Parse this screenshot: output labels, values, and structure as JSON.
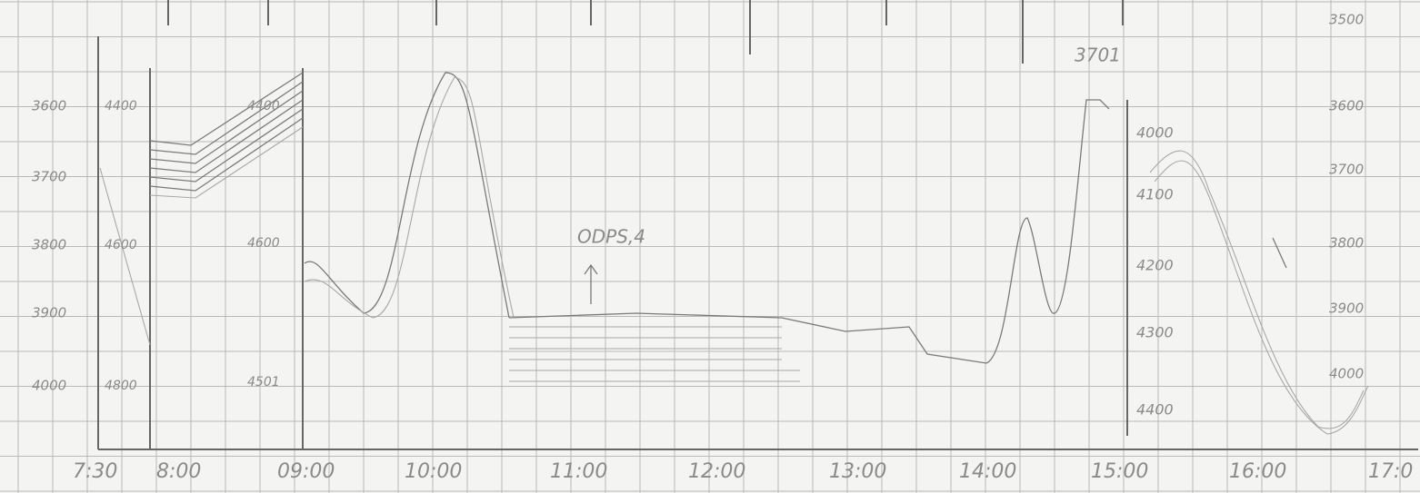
{
  "x_labels": [
    "7:30",
    "8:00",
    "09:00",
    "10:00",
    "11:00",
    "12:00",
    "13:00",
    "14:00",
    "15:00",
    "16:00",
    "17:0"
  ],
  "axis_1": [
    "3600",
    "3700",
    "3800",
    "3900",
    "4000"
  ],
  "axis_2": [
    "4400",
    "4600",
    "4800"
  ],
  "axis_3": [
    "4400",
    "4600",
    "4501"
  ],
  "axis_4": [
    "4000",
    "4100",
    "4200",
    "4300",
    "4400"
  ],
  "axis_5": [
    "3500",
    "3600",
    "3700",
    "3800",
    "3900",
    "4000"
  ],
  "annotations": [
    "ODPS,4",
    "3701"
  ]
}
